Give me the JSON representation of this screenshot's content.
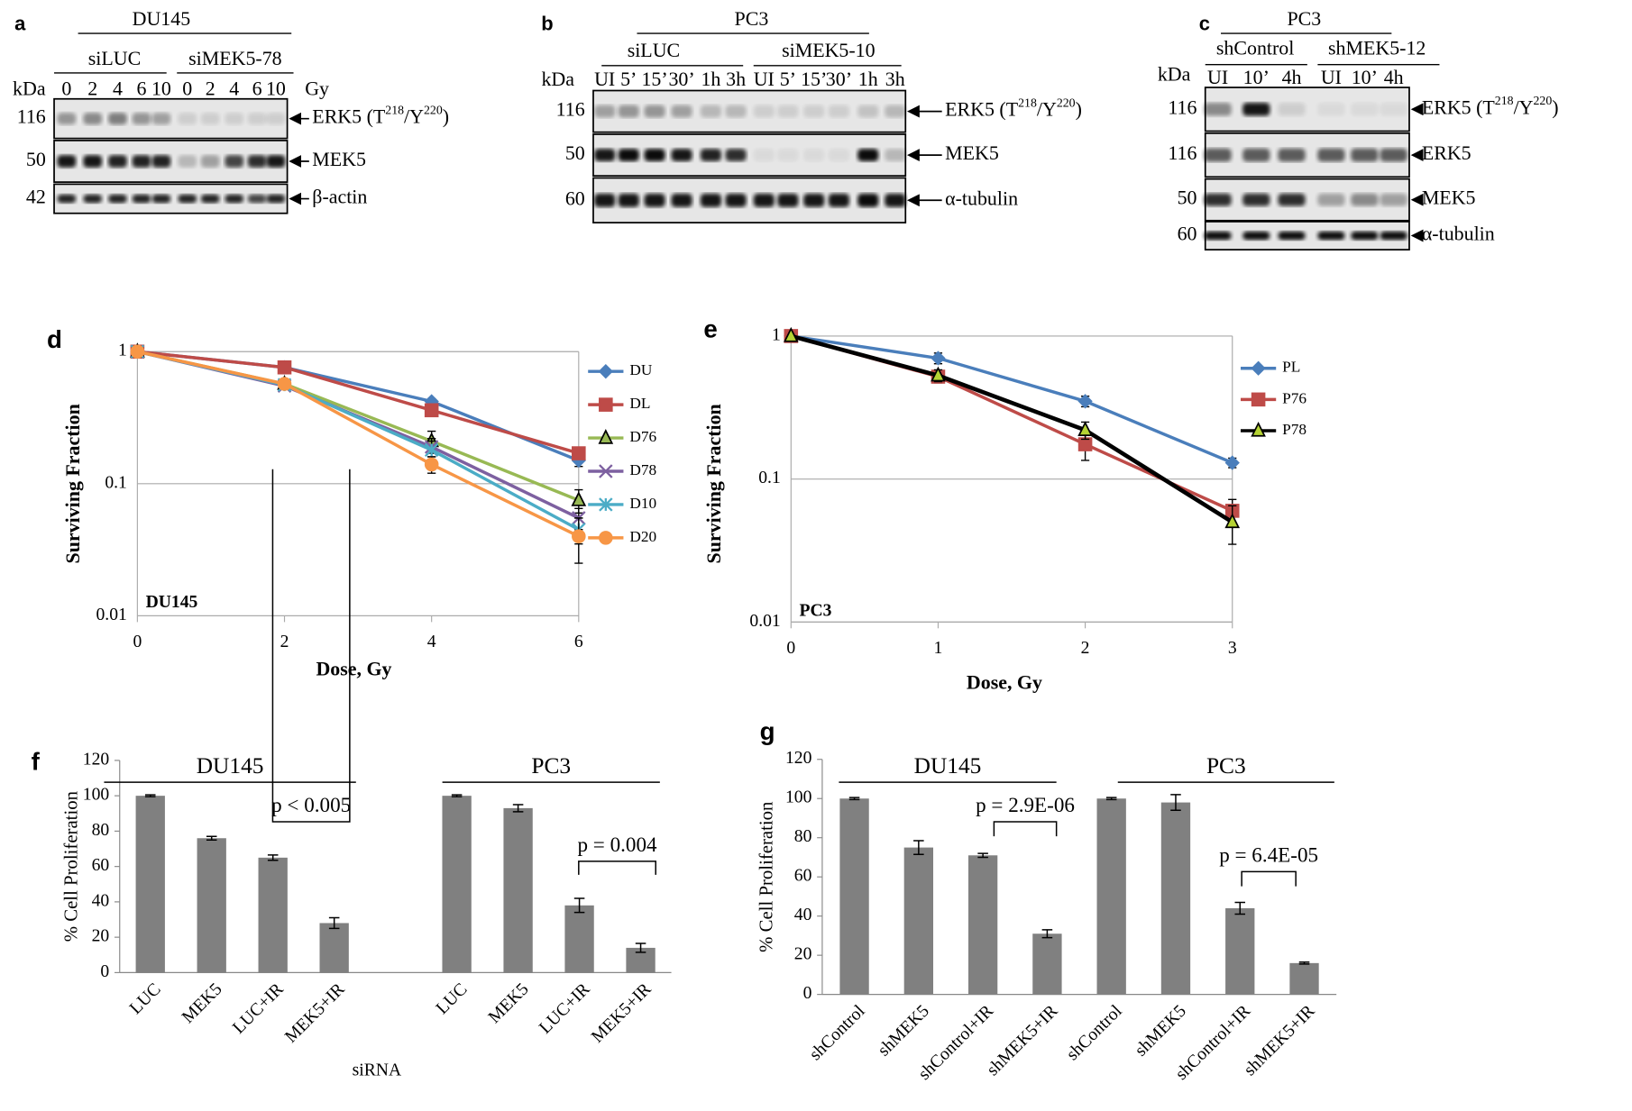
{
  "blots": [
    {
      "panel": "a",
      "cell_line": "DU145",
      "kda_label": "kDa",
      "dose_unit": "Gy",
      "groups": [
        {
          "name": "siLUC",
          "lanes": [
            "0",
            "2",
            "4",
            "6",
            "10"
          ]
        },
        {
          "name": "siMEK5-78",
          "lanes": [
            "0",
            "2",
            "4",
            "6",
            "10"
          ]
        }
      ],
      "rows": [
        {
          "kda": "116",
          "protein": [
            "ERK5 (T",
            "218",
            "/Y",
            "220",
            ")"
          ]
        },
        {
          "kda": "50",
          "protein": [
            "MEK5"
          ]
        },
        {
          "kda": "42",
          "protein": [
            "β-actin"
          ]
        }
      ]
    },
    {
      "panel": "b",
      "cell_line": "PC3",
      "kda_label": "kDa",
      "groups": [
        {
          "name": "siLUC",
          "lanes": [
            "UI",
            "5’",
            "15’",
            "30’",
            "1h",
            "3h"
          ]
        },
        {
          "name": "siMEK5-10",
          "lanes": [
            "UI",
            "5’",
            "15’",
            "30’",
            "1h",
            "3h"
          ]
        }
      ],
      "rows": [
        {
          "kda": "116",
          "protein": [
            "ERK5 (T",
            "218",
            "/Y",
            "220",
            ")"
          ]
        },
        {
          "kda": "50",
          "protein": [
            "MEK5"
          ]
        },
        {
          "kda": "60",
          "protein": [
            "α-tubulin"
          ]
        }
      ]
    },
    {
      "panel": "c",
      "cell_line": "PC3",
      "kda_label": "kDa",
      "groups": [
        {
          "name": "shControl",
          "lanes": [
            "UI",
            "10’",
            "4h"
          ]
        },
        {
          "name": "shMEK5-12",
          "lanes": [
            "UI",
            "10’",
            "4h"
          ]
        }
      ],
      "rows": [
        {
          "kda": "116",
          "protein": [
            "ERK5 (T",
            "218",
            "/Y",
            "220",
            ")"
          ]
        },
        {
          "kda": "116",
          "protein": [
            "ERK5"
          ]
        },
        {
          "kda": "50",
          "protein": [
            "MEK5"
          ]
        },
        {
          "kda": "60",
          "protein": [
            "α-tubulin"
          ]
        }
      ]
    }
  ],
  "chart_data": [
    {
      "type": "line",
      "panel": "d",
      "annotation": "DU145",
      "x_label": "Dose, Gy",
      "y_label": "Surviving Fraction",
      "log_scale": true,
      "grid": true,
      "x": [
        0,
        2,
        4,
        6
      ],
      "xlim": [
        0,
        6
      ],
      "xticks": [
        0,
        2,
        4,
        6
      ],
      "ylim": [
        0.01,
        1
      ],
      "yticks": [
        0.01,
        0.1,
        1
      ],
      "series": [
        {
          "name": "DU",
          "color": "#4a7ebb",
          "marker": "diamond",
          "values": [
            1,
            0.76,
            0.42,
            0.15
          ],
          "errors": [
            0,
            0.01,
            0.02,
            0.015
          ]
        },
        {
          "name": "DL",
          "color": "#be4b48",
          "marker": "square",
          "values": [
            1,
            0.76,
            0.36,
            0.17
          ],
          "errors": [
            0,
            0.02,
            0.02,
            0.015
          ]
        },
        {
          "name": "D76",
          "color": "#98b954",
          "marker": "triangle",
          "values": [
            1,
            0.57,
            0.21,
            0.075
          ],
          "errors": [
            0,
            0.02,
            0.04,
            0.015
          ]
        },
        {
          "name": "D78",
          "color": "#7d60a0",
          "marker": "x",
          "values": [
            1,
            0.55,
            0.19,
            0.055
          ],
          "errors": [
            0,
            0.02,
            0.03,
            0.01
          ]
        },
        {
          "name": "D10",
          "color": "#4bacc6",
          "marker": "asterisk",
          "values": [
            1,
            0.56,
            0.18,
            0.045
          ],
          "errors": [
            0,
            0.02,
            0.03,
            0.01
          ]
        },
        {
          "name": "D20",
          "color": "#f79646",
          "marker": "circle",
          "values": [
            1,
            0.57,
            0.14,
            0.04
          ],
          "errors": [
            0,
            0.02,
            0.02,
            0.015
          ]
        }
      ]
    },
    {
      "type": "line",
      "panel": "e",
      "annotation": "PC3",
      "x_label": "Dose, Gy",
      "y_label": "Surviving Fraction",
      "log_scale": true,
      "grid": true,
      "x": [
        0,
        1,
        2,
        3
      ],
      "xlim": [
        0,
        3
      ],
      "xticks": [
        0,
        1,
        2,
        3
      ],
      "ylim": [
        0.01,
        1
      ],
      "yticks": [
        0.01,
        0.1,
        1
      ],
      "series": [
        {
          "name": "PL",
          "color": "#4a7ebb",
          "marker": "diamond",
          "values": [
            1,
            0.7,
            0.35,
            0.13
          ],
          "errors": [
            0,
            0.06,
            0.03,
            0.01
          ]
        },
        {
          "name": "P76",
          "color": "#be4b48",
          "marker": "square",
          "values": [
            1,
            0.52,
            0.175,
            0.06
          ],
          "errors": [
            0,
            0.05,
            0.04,
            0.012
          ]
        },
        {
          "name": "P78",
          "color": "#000000",
          "marker": "triangle",
          "marker_color": "#b5d334",
          "values": [
            1,
            0.53,
            0.22,
            0.05
          ],
          "errors": [
            0,
            0.05,
            0.03,
            0.015
          ]
        }
      ]
    },
    {
      "type": "bar",
      "panel": "f",
      "x_label": "siRNA",
      "y_label": "% Cell Proliferation",
      "color": "#808080",
      "group_labels": [
        "DU145",
        "PC3"
      ],
      "annotations": [
        "p < 0.005",
        "p = 0.004"
      ],
      "categories": [
        "LUC",
        "MEK5",
        "LUC+IR",
        "MEK5+IR",
        null,
        "LUC",
        "MEK5",
        "LUC+IR",
        "MEK5+IR"
      ],
      "values": [
        100,
        76,
        65,
        28,
        null,
        100,
        93,
        38,
        14
      ],
      "errors": [
        0.5,
        1,
        1.5,
        3,
        null,
        0.5,
        2,
        4,
        2.5
      ],
      "ylim": [
        0,
        120
      ],
      "yticks": [
        0,
        20,
        40,
        60,
        80,
        100,
        120
      ]
    },
    {
      "type": "bar",
      "panel": "g",
      "y_label": "% Cell Proliferation",
      "color": "#808080",
      "group_labels": [
        "DU145",
        "PC3"
      ],
      "annotations": [
        "p = 2.9E-06",
        "p = 6.4E-05"
      ],
      "categories": [
        "shControl",
        "shMEK5",
        "shControl+IR",
        "shMEK5+IR",
        "shControl",
        "shMEK5",
        "shControl+IR",
        "shMEK5+IR"
      ],
      "values": [
        100,
        75,
        71,
        31,
        100,
        98,
        44,
        16
      ],
      "errors": [
        0.5,
        3.5,
        1,
        2,
        0.5,
        4,
        3,
        0.5
      ],
      "ylim": [
        0,
        120
      ],
      "yticks": [
        0,
        20,
        40,
        60,
        80,
        100,
        120
      ]
    }
  ]
}
